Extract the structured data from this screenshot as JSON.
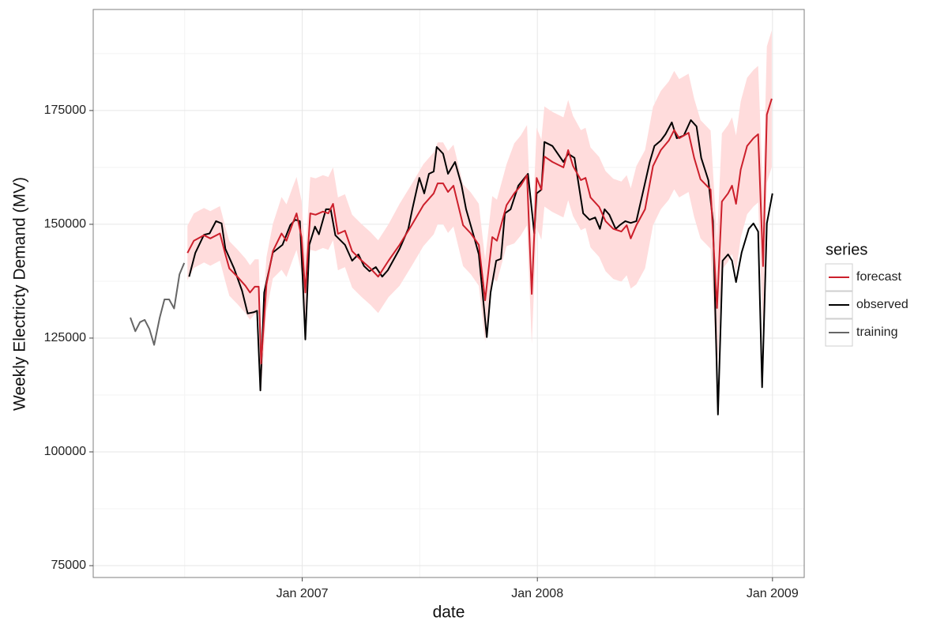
{
  "chart_data": {
    "type": "line",
    "x_label": "date",
    "y_label": "Weekly Electricty Demand (MV)",
    "legend_title": "series",
    "legend": "right",
    "grid": true,
    "xlim": [
      2006.111,
      2009.135
    ],
    "ylim": [
      72400,
      197200
    ],
    "xticks": [
      {
        "value": 2007,
        "label": "Jan 2007"
      },
      {
        "value": 2008,
        "label": "Jan 2008"
      },
      {
        "value": 2009,
        "label": "Jan 2009"
      }
    ],
    "yticks": [
      75000,
      100000,
      125000,
      150000,
      175000
    ],
    "series": [
      {
        "name": "forecast",
        "color": "#cc1f2b",
        "band_color": "#ffdcdc",
        "x": [
          2006.512,
          2006.539,
          2006.582,
          2006.609,
          2006.65,
          2006.673,
          2006.69,
          2006.724,
          2006.758,
          2006.778,
          2006.798,
          2006.815,
          2006.825,
          2006.848,
          2006.875,
          2006.912,
          2006.933,
          2006.96,
          2006.976,
          2006.997,
          2007.013,
          2007.034,
          2007.057,
          2007.088,
          2007.111,
          2007.131,
          2007.152,
          2007.182,
          2007.212,
          2007.253,
          2007.29,
          2007.323,
          2007.367,
          2007.414,
          2007.465,
          2007.515,
          2007.559,
          2007.576,
          2007.599,
          2007.62,
          2007.643,
          2007.684,
          2007.717,
          2007.751,
          2007.778,
          2007.808,
          2007.828,
          2007.869,
          2007.902,
          2007.929,
          2007.956,
          2007.976,
          2007.997,
          2008.017,
          2008.03,
          2008.064,
          2008.111,
          2008.131,
          2008.152,
          2008.185,
          2008.205,
          2008.226,
          2008.263,
          2008.29,
          2008.323,
          2008.357,
          2008.38,
          2008.397,
          2008.421,
          2008.458,
          2008.492,
          2008.525,
          2008.559,
          2008.582,
          2008.603,
          2008.643,
          2008.667,
          2008.694,
          2008.737,
          2008.764,
          2008.785,
          2008.811,
          2008.828,
          2008.845,
          2008.865,
          2008.892,
          2008.919,
          2008.939,
          2008.96,
          2008.976,
          2008.997
        ],
        "values": [
          143700,
          146400,
          147600,
          146900,
          148000,
          143400,
          140300,
          138500,
          136500,
          135000,
          136300,
          136300,
          119400,
          136800,
          144100,
          148000,
          146400,
          150300,
          152400,
          147200,
          135000,
          152400,
          152100,
          152800,
          152400,
          154500,
          147900,
          148600,
          144100,
          142000,
          140300,
          138500,
          142000,
          145500,
          149800,
          154200,
          156800,
          159000,
          159000,
          157100,
          158500,
          149800,
          148000,
          145500,
          133300,
          147200,
          146400,
          154200,
          156800,
          158500,
          160800,
          134700,
          160200,
          157600,
          164900,
          163700,
          162500,
          166300,
          162800,
          159700,
          160200,
          155900,
          153800,
          150700,
          149000,
          148400,
          149800,
          146900,
          149800,
          153300,
          162800,
          166300,
          168400,
          170700,
          168900,
          170100,
          164600,
          159900,
          157600,
          131600,
          155000,
          156800,
          158500,
          154500,
          162000,
          167200,
          168900,
          169800,
          140800,
          174100,
          177600
        ],
        "lower": [
          137700,
          140400,
          141600,
          140900,
          142000,
          137400,
          134300,
          132500,
          130500,
          129000,
          130300,
          130300,
          113400,
          130800,
          138100,
          140000,
          138400,
          142300,
          144400,
          139200,
          127000,
          144400,
          144100,
          144800,
          144400,
          146500,
          139900,
          140600,
          136100,
          134000,
          132300,
          130500,
          134000,
          136500,
          140800,
          145200,
          147800,
          150000,
          150000,
          148100,
          149500,
          140800,
          139000,
          136500,
          124300,
          138200,
          137400,
          145200,
          145800,
          147500,
          149800,
          123700,
          149200,
          146600,
          153900,
          152700,
          151500,
          155300,
          151800,
          148700,
          149200,
          144900,
          142800,
          139700,
          138000,
          137400,
          138800,
          135900,
          136800,
          140300,
          149800,
          153300,
          155400,
          157700,
          155900,
          157100,
          151600,
          146900,
          144600,
          116600,
          140000,
          141800,
          143500,
          139500,
          147000,
          152200,
          153900,
          154800,
          125800,
          159100,
          162600
        ],
        "upper": [
          149700,
          152400,
          153600,
          152900,
          154000,
          149400,
          146300,
          144500,
          142500,
          141000,
          142300,
          142300,
          125400,
          142800,
          150100,
          156000,
          154400,
          158300,
          160400,
          155200,
          143000,
          160400,
          160100,
          160800,
          160400,
          162500,
          155900,
          156600,
          152100,
          150000,
          148300,
          146500,
          150000,
          154500,
          158800,
          163200,
          165800,
          168000,
          168000,
          166100,
          167500,
          158800,
          157000,
          154500,
          142300,
          156200,
          155400,
          163200,
          167800,
          169500,
          171800,
          145700,
          171200,
          168600,
          175900,
          174700,
          173500,
          177300,
          173800,
          170700,
          171200,
          166900,
          164800,
          161700,
          160000,
          159400,
          160800,
          157900,
          162800,
          166300,
          175800,
          179300,
          181400,
          183700,
          181900,
          183100,
          177600,
          172900,
          170600,
          146600,
          170000,
          171800,
          173500,
          169500,
          177000,
          182200,
          183900,
          184800,
          155800,
          189100,
          192600
        ]
      },
      {
        "name": "observed",
        "color": "#000000",
        "x": [
          2006.519,
          2006.545,
          2006.582,
          2006.606,
          2006.633,
          2006.657,
          2006.673,
          2006.71,
          2006.744,
          2006.768,
          2006.795,
          2006.808,
          2006.822,
          2006.838,
          2006.875,
          2006.916,
          2006.949,
          2006.97,
          2006.99,
          2007.003,
          2007.013,
          2007.03,
          2007.054,
          2007.071,
          2007.101,
          2007.121,
          2007.141,
          2007.182,
          2007.212,
          2007.239,
          2007.263,
          2007.286,
          2007.313,
          2007.34,
          2007.364,
          2007.414,
          2007.451,
          2007.468,
          2007.498,
          2007.519,
          2007.539,
          2007.559,
          2007.572,
          2007.599,
          2007.62,
          2007.65,
          2007.677,
          2007.697,
          2007.731,
          2007.751,
          2007.785,
          2007.801,
          2007.825,
          2007.845,
          2007.862,
          2007.886,
          2007.919,
          2007.96,
          2007.987,
          2007.997,
          2008.017,
          2008.03,
          2008.064,
          2008.111,
          2008.131,
          2008.158,
          2008.195,
          2008.222,
          2008.246,
          2008.266,
          2008.286,
          2008.306,
          2008.333,
          2008.35,
          2008.374,
          2008.397,
          2008.421,
          2008.448,
          2008.478,
          2008.498,
          2008.525,
          2008.545,
          2008.572,
          2008.593,
          2008.623,
          2008.653,
          2008.677,
          2008.697,
          2008.727,
          2008.747,
          2008.768,
          2008.788,
          2008.811,
          2008.828,
          2008.845,
          2008.869,
          2008.899,
          2008.919,
          2008.939,
          2008.956,
          2008.976,
          2009.0
        ],
        "values": [
          138500,
          143700,
          147700,
          148000,
          150700,
          150200,
          144600,
          140300,
          135400,
          130400,
          130700,
          131000,
          113500,
          135000,
          143800,
          145500,
          149800,
          151000,
          150700,
          136800,
          124700,
          145500,
          149500,
          147800,
          153300,
          153300,
          147600,
          145500,
          142000,
          143400,
          140800,
          139700,
          140600,
          138500,
          139900,
          144600,
          149000,
          153300,
          160200,
          156800,
          161100,
          161600,
          167000,
          165500,
          161100,
          163700,
          158700,
          153300,
          147200,
          143400,
          125200,
          135000,
          142000,
          142400,
          152400,
          153300,
          158500,
          161100,
          148000,
          156800,
          157600,
          168100,
          167200,
          163700,
          165500,
          164600,
          152400,
          151000,
          151500,
          149000,
          153300,
          152100,
          149000,
          149800,
          150700,
          150300,
          150700,
          156800,
          163700,
          167200,
          168400,
          169800,
          172400,
          168900,
          169500,
          172900,
          171500,
          164600,
          159700,
          150700,
          108200,
          142000,
          143400,
          142000,
          137300,
          143800,
          149000,
          150200,
          148400,
          114200,
          150200,
          156800
        ]
      },
      {
        "name": "training",
        "color": "#666666",
        "x": [
          2006.269,
          2006.29,
          2006.31,
          2006.33,
          2006.35,
          2006.37,
          2006.394,
          2006.414,
          2006.434,
          2006.455,
          2006.478,
          2006.498
        ],
        "values": [
          129500,
          126500,
          128500,
          129000,
          127000,
          123500,
          129500,
          133500,
          133500,
          131500,
          139000,
          141500
        ]
      }
    ]
  }
}
